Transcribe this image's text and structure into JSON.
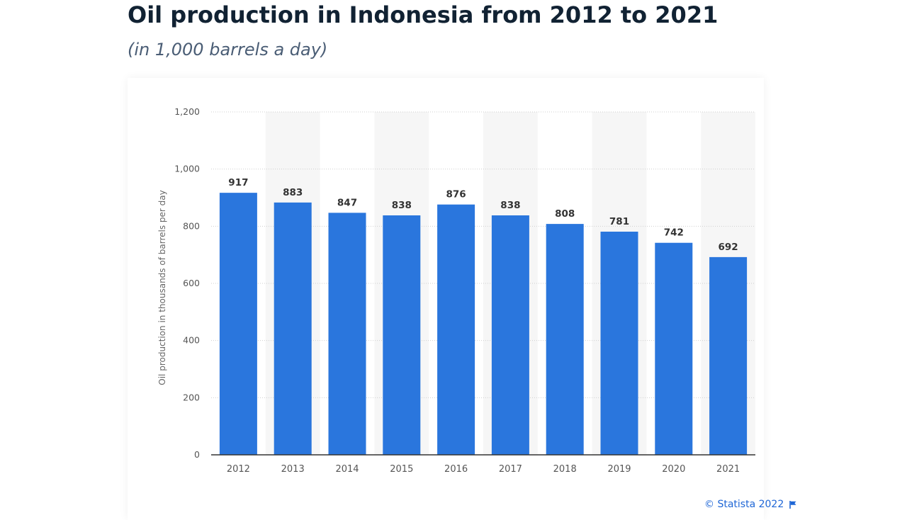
{
  "header": {
    "title": "Oil production in Indonesia from 2012 to 2021",
    "subtitle": "(in 1,000 barrels a day)"
  },
  "footer": {
    "credit": "© Statista 2022",
    "flag_icon": "flag-icon"
  },
  "colors": {
    "bar": "#2a76dd",
    "band": "#f6f6f6",
    "grid": "#cfcfcf",
    "axis": "#333333",
    "tick_text": "#555555",
    "value_text": "#333333",
    "credit": "#1e66d6"
  },
  "chart_data": {
    "type": "bar",
    "categories": [
      "2012",
      "2013",
      "2014",
      "2015",
      "2016",
      "2017",
      "2018",
      "2019",
      "2020",
      "2021"
    ],
    "values": [
      917,
      883,
      847,
      838,
      876,
      838,
      808,
      781,
      742,
      692
    ],
    "data_labels": [
      "917",
      "883",
      "847",
      "838",
      "876",
      "838",
      "808",
      "781",
      "742",
      "692"
    ],
    "xlabel": "",
    "ylabel": "Oil production in thousands of barrels per day",
    "ylim": [
      0,
      1200
    ],
    "yticks": [
      0,
      200,
      400,
      600,
      800,
      1000,
      1200
    ],
    "ytick_labels": [
      "0",
      "200",
      "400",
      "600",
      "800",
      "1,000",
      "1,200"
    ],
    "grid": true,
    "legend": "none"
  }
}
